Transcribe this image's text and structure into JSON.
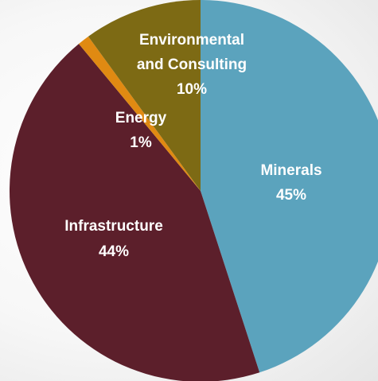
{
  "chart_data": {
    "type": "pie",
    "title": "",
    "start_angle_deg": 0,
    "direction": "clockwise",
    "slices": [
      {
        "label": "Minerals",
        "value": 45,
        "value_label": "45%",
        "color": "#5ba3bd"
      },
      {
        "label": "Infrastructure",
        "value": 44,
        "value_label": "44%",
        "color": "#5c1f2b"
      },
      {
        "label": "Energy",
        "value": 1,
        "value_label": "1%",
        "color": "#e08a12"
      },
      {
        "label": "Environmental and Consulting",
        "value": 10,
        "value_label": "10%",
        "color": "#7d6a14"
      }
    ]
  }
}
